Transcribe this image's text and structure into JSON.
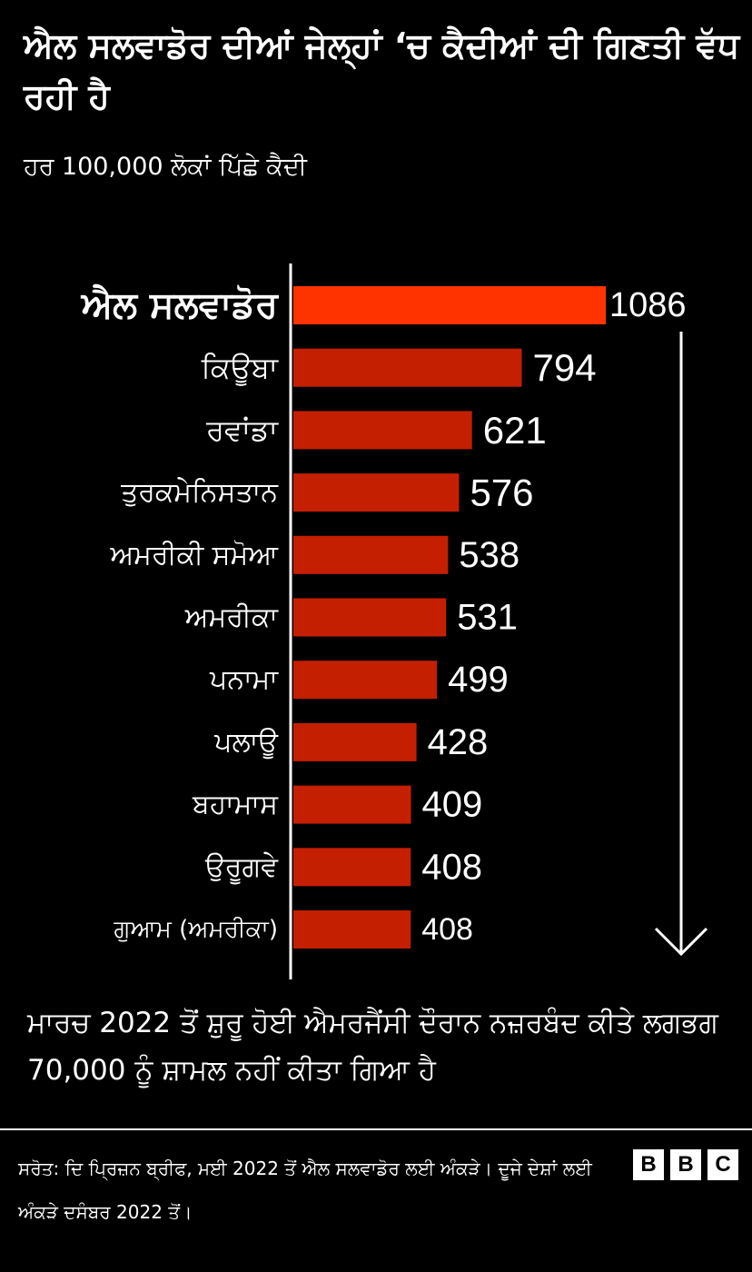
{
  "chart_data": {
    "type": "bar",
    "orientation": "horizontal",
    "title": "ਐਲ ਸਲਵਾਡੋਰ ਦੀਆਂ ਜੇਲ੍ਹਾਂ ‘ਚ ਕੈਦੀਆਂ ਦੀ ਗਿਣਤੀ ਵੱਧ ਰਹੀ ਹੈ",
    "subtitle": "ਹਰ 100,000 ਲੋਕਾਂ ਪਿੱਛੇ ਕੈਦੀ",
    "categories": [
      "ਐਲ ਸਲਵਾਡੋਰ",
      "ਕਿਊਬਾ",
      "ਰਵਾਂਡਾ",
      "ਤੁਰਕਮੇਨਿਸਤਾਨ",
      "ਅਮਰੀਕੀ ਸਮੋਆ",
      "ਅਮਰੀਕਾ",
      "ਪਨਾਮਾ",
      "ਪਲਾਊ",
      "ਬਹਾਮਾਸ",
      "ਉਰੂਗਵੇ",
      "ਗੁਆਮ (ਅਮਰੀਕਾ)"
    ],
    "values": [
      1086,
      794,
      621,
      576,
      538,
      531,
      499,
      428,
      409,
      408,
      408
    ],
    "xlim": [
      0,
      1086
    ],
    "grid": false,
    "highlight_color": "#ff3300",
    "bar_color": "#c41f00",
    "annotation": "ਮਾਰਚ 2022 ਤੋਂ ਸ਼ੁਰੂ ਹੋਈ ਐਮਰਜੈਂਸੀ ਦੌਰਾਨ ਨਜ਼ਰਬੰਦ ਕੀਤੇ ਲਗਭਗ 70,000 ਨੂੰ ਸ਼ਾਮਲ ਨਹੀਂ ਕੀਤਾ ਗਿਆ ਹੈ"
  },
  "footer": {
    "source": "ਸਰੋਤ: ਦਿ ਪ੍ਰਿਜ਼ਨ ਬ੍ਰੀਫ, ਮਈ 2022 ਤੋਂ ਐਲ ਸਲਵਾਡੋਰ ਲਈ ਅੰਕੜੇ। ਦੂਜੇ ਦੇਸ਼ਾਂ ਲਈ ਅੰਕੜੇ ਦਸੰਬਰ 2022 ਤੋਂ।",
    "logo": [
      "B",
      "B",
      "C"
    ]
  }
}
